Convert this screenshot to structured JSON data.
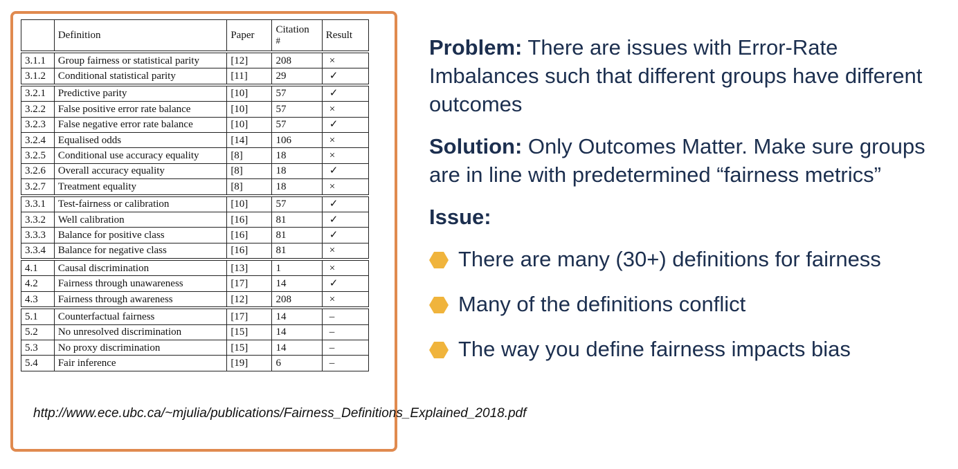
{
  "table": {
    "headers": {
      "section": "",
      "definition": "Definition",
      "paper": "Paper",
      "citation": "Citation",
      "citation_sub": "#",
      "result": "Result"
    },
    "groups": [
      [
        [
          "3.1.1",
          "Group fairness or statistical parity",
          "[12]",
          "208",
          "×"
        ],
        [
          "3.1.2",
          "Conditional statistical parity",
          "[11]",
          "29",
          "✓"
        ]
      ],
      [
        [
          "3.2.1",
          "Predictive parity",
          "[10]",
          "57",
          "✓"
        ],
        [
          "3.2.2",
          "False positive error rate balance",
          "[10]",
          "57",
          "×"
        ],
        [
          "3.2.3",
          "False negative error rate balance",
          "[10]",
          "57",
          "✓"
        ],
        [
          "3.2.4",
          "Equalised odds",
          "[14]",
          "106",
          "×"
        ],
        [
          "3.2.5",
          "Conditional use accuracy equality",
          "[8]",
          "18",
          "×"
        ],
        [
          "3.2.6",
          "Overall accuracy equality",
          "[8]",
          "18",
          "✓"
        ],
        [
          "3.2.7",
          "Treatment equality",
          "[8]",
          "18",
          "×"
        ]
      ],
      [
        [
          "3.3.1",
          "Test-fairness or calibration",
          "[10]",
          "57",
          "✓"
        ],
        [
          "3.3.2",
          "Well calibration",
          "[16]",
          "81",
          "✓"
        ],
        [
          "3.3.3",
          "Balance for positive class",
          "[16]",
          "81",
          "✓"
        ],
        [
          "3.3.4",
          "Balance for negative class",
          "[16]",
          "81",
          "×"
        ]
      ],
      [
        [
          "4.1",
          "Causal discrimination",
          "[13]",
          "1",
          "×"
        ],
        [
          "4.2",
          "Fairness through unawareness",
          "[17]",
          "14",
          "✓"
        ],
        [
          "4.3",
          "Fairness through awareness",
          "[12]",
          "208",
          "×"
        ]
      ],
      [
        [
          "5.1",
          "Counterfactual fairness",
          "[17]",
          "14",
          "–"
        ],
        [
          "5.2",
          "No unresolved discrimination",
          "[15]",
          "14",
          "–"
        ],
        [
          "5.3",
          "No proxy discrimination",
          "[15]",
          "14",
          "–"
        ],
        [
          "5.4",
          "Fair inference",
          "[19]",
          "6",
          "–"
        ]
      ]
    ]
  },
  "url": "http://www.ece.ubc.ca/~mjulia/publications/Fairness_Definitions_Explained_2018.pdf",
  "problem": {
    "label": "Problem:",
    "text": " There are issues with Error-Rate Imbalances such that different groups have different outcomes"
  },
  "solution": {
    "label": "Solution:",
    "text": " Only Outcomes  Matter. Make sure groups are in  line with predetermined “fairness metrics”"
  },
  "issue_label": "Issue:",
  "bullets": [
    "There are many (30+) definitions for fairness",
    "Many of the definitions conflict",
    "The way you define fairness impacts bias"
  ],
  "colors": {
    "accent": "#e08a4f",
    "text": "#1c2f4f",
    "bullet": "#f0b43c"
  },
  "bullet_icon": "hexagon-bullet-icon"
}
